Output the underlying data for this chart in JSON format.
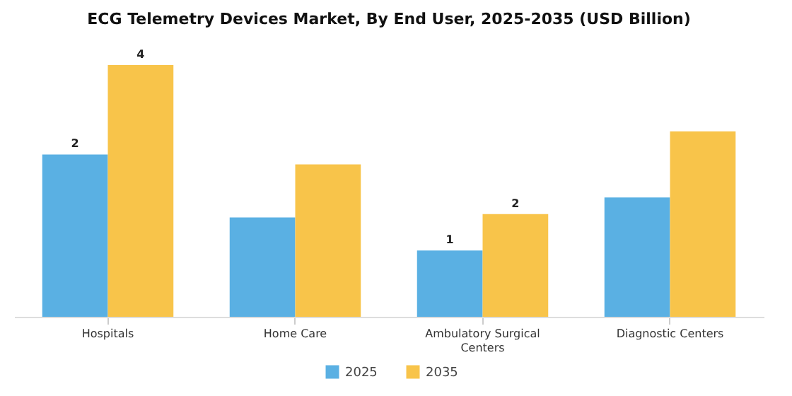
{
  "chart_data": {
    "type": "bar",
    "title": "ECG Telemetry Devices Market, By End User, 2025-2035 (USD Billion)",
    "categories": [
      "Hospitals",
      "Home Care",
      "Ambulatory Surgical Centers",
      "Diagnostic Centers"
    ],
    "series": [
      {
        "name": "2025",
        "color": "#5ab0e3",
        "values": [
          2.45,
          1.5,
          1.0,
          1.8
        ],
        "value_labels": [
          "2",
          null,
          "1",
          null
        ]
      },
      {
        "name": "2035",
        "color": "#f8c44a",
        "values": [
          3.8,
          2.3,
          1.55,
          2.8
        ],
        "value_labels": [
          "4",
          null,
          "2",
          null
        ]
      }
    ],
    "legend": "bottom"
  }
}
